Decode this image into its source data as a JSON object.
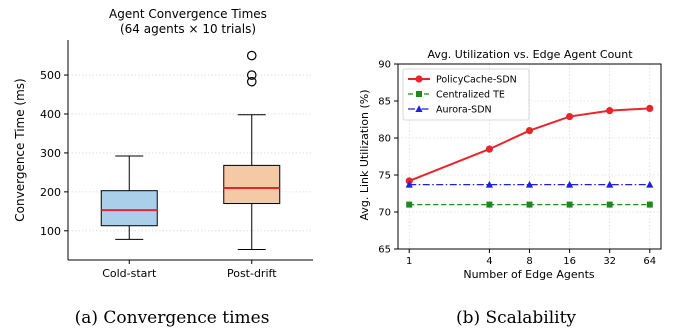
{
  "chart_data": [
    {
      "type": "box",
      "title": "Agent Convergence Times",
      "subtitle": "(64 agents × 10 trials)",
      "ylabel": "Convergence Time (ms)",
      "xlabel": "",
      "ylim": [
        25,
        590
      ],
      "yticks": [
        100,
        200,
        300,
        400,
        500
      ],
      "grid": true,
      "categories": [
        "Cold-start",
        "Post-drift"
      ],
      "boxes": [
        {
          "name": "Cold-start",
          "whisker_low": 78,
          "q1": 113,
          "median": 153,
          "q3": 203,
          "whisker_high": 292,
          "outliers": [],
          "color": "#a9cfea"
        },
        {
          "name": "Post-drift",
          "whisker_low": 52,
          "q1": 170,
          "median": 210,
          "q3": 268,
          "whisker_high": 398,
          "outliers": [
            483,
            500,
            550
          ],
          "color": "#f3c9a6"
        }
      ],
      "median_color": "#e8252b",
      "caption": "(a) Convergence times"
    },
    {
      "type": "line",
      "title": "Avg. Utilization vs. Edge Agent Count",
      "xlabel": "Number of Edge Agents",
      "ylabel": "Avg. Link Utilization (%)",
      "xscale": "log2",
      "x": [
        1,
        4,
        8,
        16,
        32,
        64
      ],
      "xticks": [
        1,
        4,
        8,
        16,
        32,
        64
      ],
      "ylim": [
        65,
        90
      ],
      "yticks": [
        65,
        70,
        75,
        80,
        85,
        90
      ],
      "grid": true,
      "legend": "top-left",
      "series": [
        {
          "name": "PolicyCache-SDN",
          "values": [
            74.2,
            78.5,
            81.0,
            82.9,
            83.7,
            84.0
          ],
          "color": "#e8252b",
          "style": "solid",
          "marker": "circle"
        },
        {
          "name": "Centralized TE",
          "values": [
            71.0,
            71.0,
            71.0,
            71.0,
            71.0,
            71.0
          ],
          "color": "#1e8a1e",
          "style": "dashed",
          "marker": "square"
        },
        {
          "name": "Aurora-SDN",
          "values": [
            73.7,
            73.7,
            73.7,
            73.7,
            73.7,
            73.7
          ],
          "color": "#1f1fe0",
          "style": "dashdot",
          "marker": "triangle"
        }
      ],
      "caption": "(b) Scalability"
    }
  ]
}
